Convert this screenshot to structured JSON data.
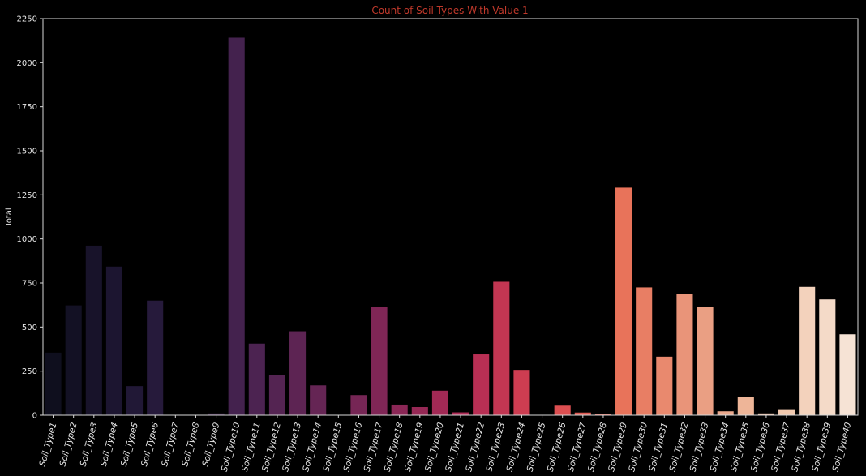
{
  "chart_data": {
    "type": "bar",
    "title": "Count of Soil Types With Value 1",
    "xlabel": "",
    "ylabel": "Total",
    "ylim": [
      0,
      2250
    ],
    "yticks": [
      "0",
      "250",
      "500",
      "750",
      "1000",
      "1250",
      "1500",
      "1750",
      "2000",
      "2250"
    ],
    "grid": false,
    "categories": [
      "Soil_Type1",
      "Soil_Type2",
      "Soil_Type3",
      "Soil_Type4",
      "Soil_Type5",
      "Soil_Type6",
      "Soil_Type7",
      "Soil_Type8",
      "Soil_Type9",
      "Soil_Type10",
      "Soil_Type11",
      "Soil_Type12",
      "Soil_Type13",
      "Soil_Type14",
      "Soil_Type15",
      "Soil_Type16",
      "Soil_Type17",
      "Soil_Type18",
      "Soil_Type19",
      "Soil_Type20",
      "Soil_Type21",
      "Soil_Type22",
      "Soil_Type23",
      "Soil_Type24",
      "Soil_Type25",
      "Soil_Type26",
      "Soil_Type27",
      "Soil_Type28",
      "Soil_Type29",
      "Soil_Type30",
      "Soil_Type31",
      "Soil_Type32",
      "Soil_Type33",
      "Soil_Type34",
      "Soil_Type35",
      "Soil_Type36",
      "Soil_Type37",
      "Soil_Type38",
      "Soil_Type39",
      "Soil_Type40"
    ],
    "values": [
      355,
      623,
      962,
      843,
      165,
      650,
      0,
      1,
      10,
      2142,
      406,
      227,
      476,
      169,
      0,
      114,
      612,
      60,
      46,
      139,
      16,
      345,
      757,
      257,
      1,
      54,
      15,
      9,
      1291,
      725,
      332,
      690,
      616,
      22,
      102,
      10,
      34,
      728,
      657,
      459
    ],
    "colors": {
      "background": "#000000",
      "axis": "#d9d9d9",
      "title": "#c0392b",
      "text": "#e6e6e6",
      "palette_start": "#0f0f1e",
      "palette_end": "#f6e3d5"
    }
  }
}
